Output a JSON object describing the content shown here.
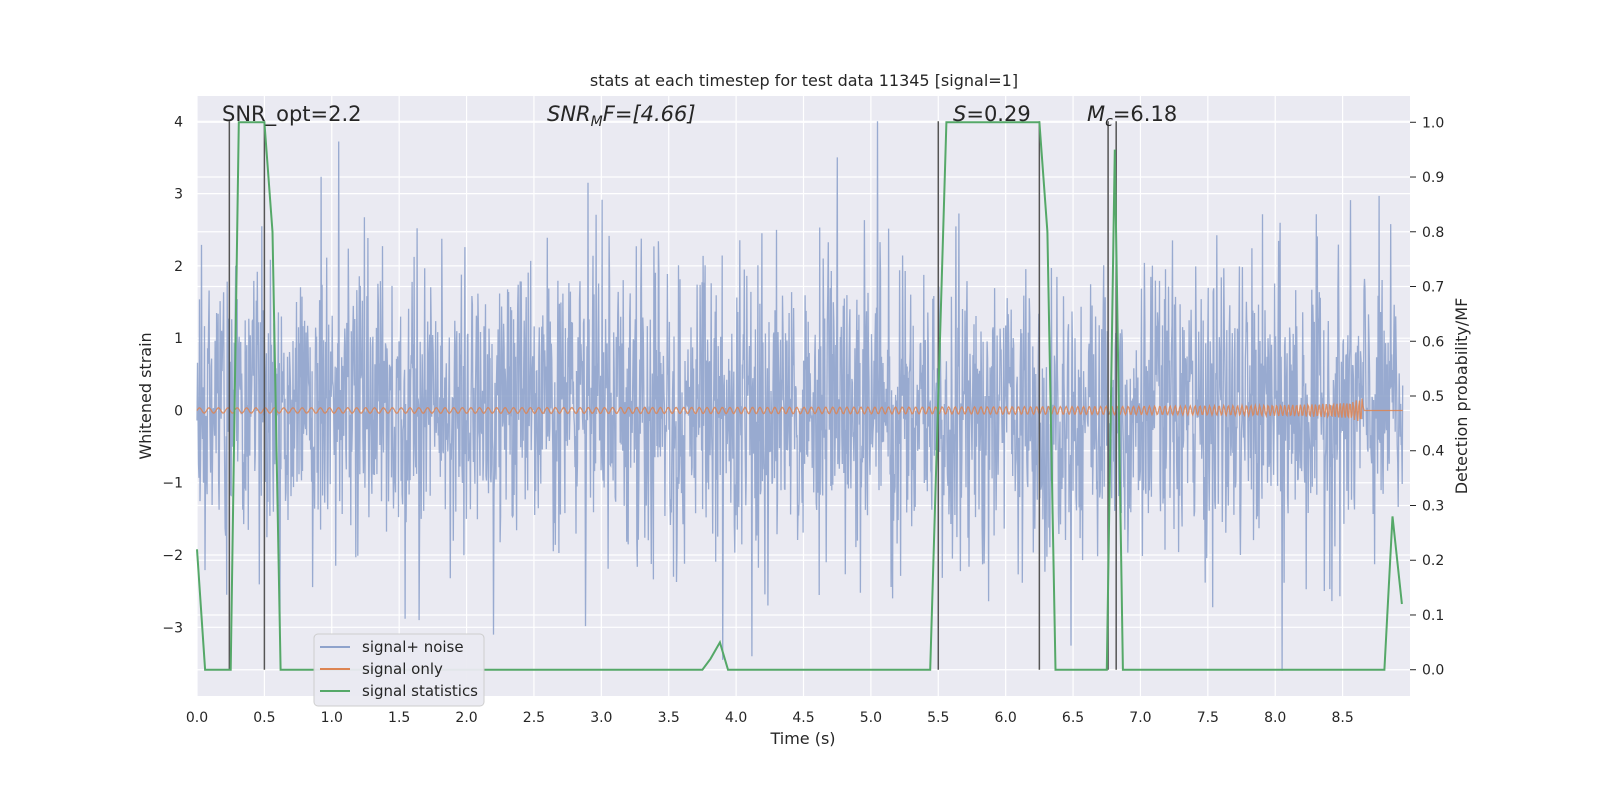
{
  "chart_data": {
    "type": "line",
    "title": "stats at each timestep for test data 11345 [signal=1]",
    "xlabel": "Time (s)",
    "ylabel_left": "Whitened strain",
    "ylabel_right": "Detection probability/MF",
    "xlim": [
      0.0,
      9.0
    ],
    "ylim_left": [
      -3.95,
      4.35
    ],
    "ylim_right": [
      -0.048,
      1.048
    ],
    "x_ticks": [
      0.0,
      0.5,
      1.0,
      1.5,
      2.0,
      2.5,
      3.0,
      3.5,
      4.0,
      4.5,
      5.0,
      5.5,
      6.0,
      6.5,
      7.0,
      7.5,
      8.0,
      8.5
    ],
    "x_tick_labels": [
      "0.0",
      "0.5",
      "1.0",
      "1.5",
      "2.0",
      "2.5",
      "3.0",
      "3.5",
      "4.0",
      "4.5",
      "5.0",
      "5.5",
      "6.0",
      "6.5",
      "7.0",
      "7.5",
      "8.0",
      "8.5"
    ],
    "y_left_ticks": [
      -3,
      -2,
      -1,
      0,
      1,
      2,
      3,
      4
    ],
    "y_left_tick_labels": [
      "−3",
      "−2",
      "−1",
      "0",
      "1",
      "2",
      "3",
      "4"
    ],
    "y_right_ticks": [
      0.0,
      0.1,
      0.2,
      0.3,
      0.4,
      0.5,
      0.6,
      0.7,
      0.8,
      0.9,
      1.0
    ],
    "y_right_tick_labels": [
      "0.0",
      "0.1",
      "0.2",
      "0.3",
      "0.4",
      "0.5",
      "0.6",
      "0.7",
      "0.8",
      "0.9",
      "1.0"
    ],
    "grid": true,
    "legend_position": "lower-left",
    "annotations": {
      "snr_opt": "SNR_opt=2.2",
      "snr_mf_sym": "SNR",
      "snr_mf_sub": "M",
      "snr_mf_rest": "F=[4.66]",
      "s_sym": "S",
      "s_rest": "=0.29",
      "mc_sym": "M",
      "mc_sub": "c",
      "mc_rest": "=6.18"
    },
    "series": [
      {
        "name": "signal+ noise",
        "color": "#8fa3cc",
        "axis": "left",
        "noise_sigma": 1.0,
        "spike_peaks": [
          {
            "x": 1.05,
            "y": 3.72
          },
          {
            "x": 2.9,
            "y": 3.15
          },
          {
            "x": 4.75,
            "y": 3.5
          },
          {
            "x": 5.05,
            "y": 4.0
          },
          {
            "x": 3.9,
            "y": -3.45
          },
          {
            "x": 8.05,
            "y": -3.6
          },
          {
            "x": 2.2,
            "y": -3.1
          },
          {
            "x": 1.65,
            "y": -2.9
          }
        ]
      },
      {
        "name": "signal only",
        "color": "#dd8452",
        "axis": "left",
        "chirp_end": 8.65,
        "chirp_peak_amplitude": 0.2
      },
      {
        "name": "signal statistics",
        "color": "#55a868",
        "axis": "right",
        "x": [
          0.0,
          0.06,
          0.25,
          0.31,
          0.5,
          0.56,
          0.62,
          0.75,
          3.75,
          3.81,
          3.88,
          3.94,
          4.0,
          5.44,
          5.5,
          5.56,
          5.88,
          6.25,
          6.31,
          6.37,
          6.75,
          6.81,
          6.87,
          8.81,
          8.87,
          8.94
        ],
        "y": [
          0.22,
          0.0,
          0.0,
          1.0,
          1.0,
          0.8,
          0.0,
          0.0,
          0.0,
          0.02,
          0.05,
          0.0,
          0.0,
          0.0,
          0.5,
          1.0,
          1.0,
          1.0,
          0.8,
          0.0,
          0.0,
          0.95,
          0.0,
          0.0,
          0.28,
          0.12
        ]
      }
    ],
    "vertical_lines": {
      "color": "#555555",
      "x": [
        0.24,
        0.5,
        5.5,
        6.25,
        6.76,
        6.82
      ]
    }
  }
}
